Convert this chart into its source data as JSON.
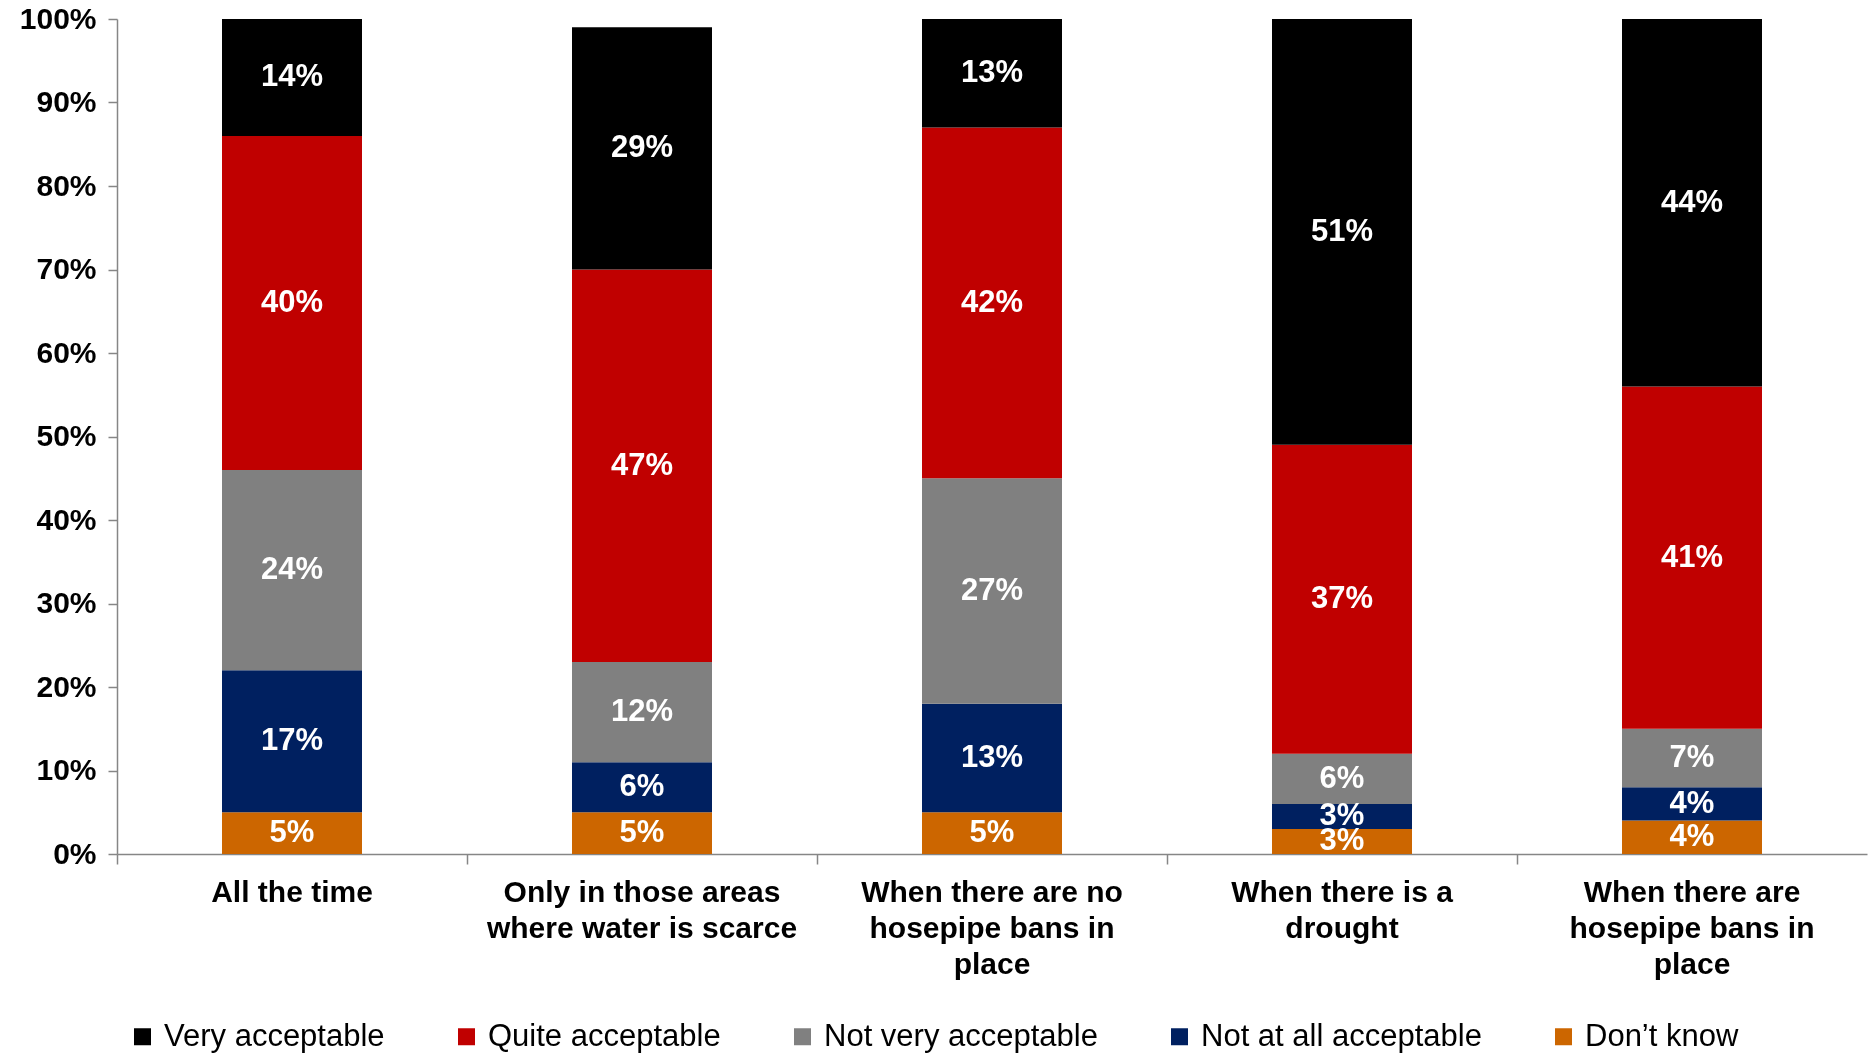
{
  "chart_data": {
    "type": "bar",
    "stacked": true,
    "categories": [
      "All the time",
      "Only in those areas where water is scarce",
      "When there are no hosepipe bans in place",
      "When there is a drought",
      "When there are hosepipe bans in place"
    ],
    "series": [
      {
        "name": "Don’t know",
        "color": "#cc6600",
        "values": [
          5,
          5,
          5,
          3,
          4
        ],
        "value_labels": [
          "5%",
          "5%",
          "5%",
          "3%",
          "4%"
        ]
      },
      {
        "name": "Not at all acceptable",
        "color": "#002060",
        "values": [
          17,
          6,
          13,
          3,
          4
        ],
        "value_labels": [
          "17%",
          "6%",
          "13%",
          "3%",
          "4%"
        ]
      },
      {
        "name": "Not very acceptable",
        "color": "#808080",
        "values": [
          24,
          12,
          27,
          6,
          7
        ],
        "value_labels": [
          "24%",
          "12%",
          "27%",
          "6%",
          "7%"
        ]
      },
      {
        "name": "Quite acceptable",
        "color": "#c00000",
        "values": [
          40,
          47,
          42,
          37,
          41
        ],
        "value_labels": [
          "40%",
          "47%",
          "42%",
          "37%",
          "41%"
        ]
      },
      {
        "name": "Very acceptable",
        "color": "#000000",
        "values": [
          14,
          29,
          13,
          51,
          44
        ],
        "value_labels": [
          "14%",
          "29%",
          "13%",
          "51%",
          "44%"
        ]
      }
    ],
    "ylim": [
      0,
      100
    ],
    "yticks": [
      {
        "value": 0,
        "label": "0%"
      },
      {
        "value": 10,
        "label": "10%"
      },
      {
        "value": 20,
        "label": "20%"
      },
      {
        "value": 30,
        "label": "30%"
      },
      {
        "value": 40,
        "label": "40%"
      },
      {
        "value": 50,
        "label": "50%"
      },
      {
        "value": 60,
        "label": "60%"
      },
      {
        "value": 70,
        "label": "70%"
      },
      {
        "value": 80,
        "label": "80%"
      },
      {
        "value": 90,
        "label": "90%"
      },
      {
        "value": 100,
        "label": "100%"
      }
    ],
    "legend": "bottom",
    "grid": false
  }
}
